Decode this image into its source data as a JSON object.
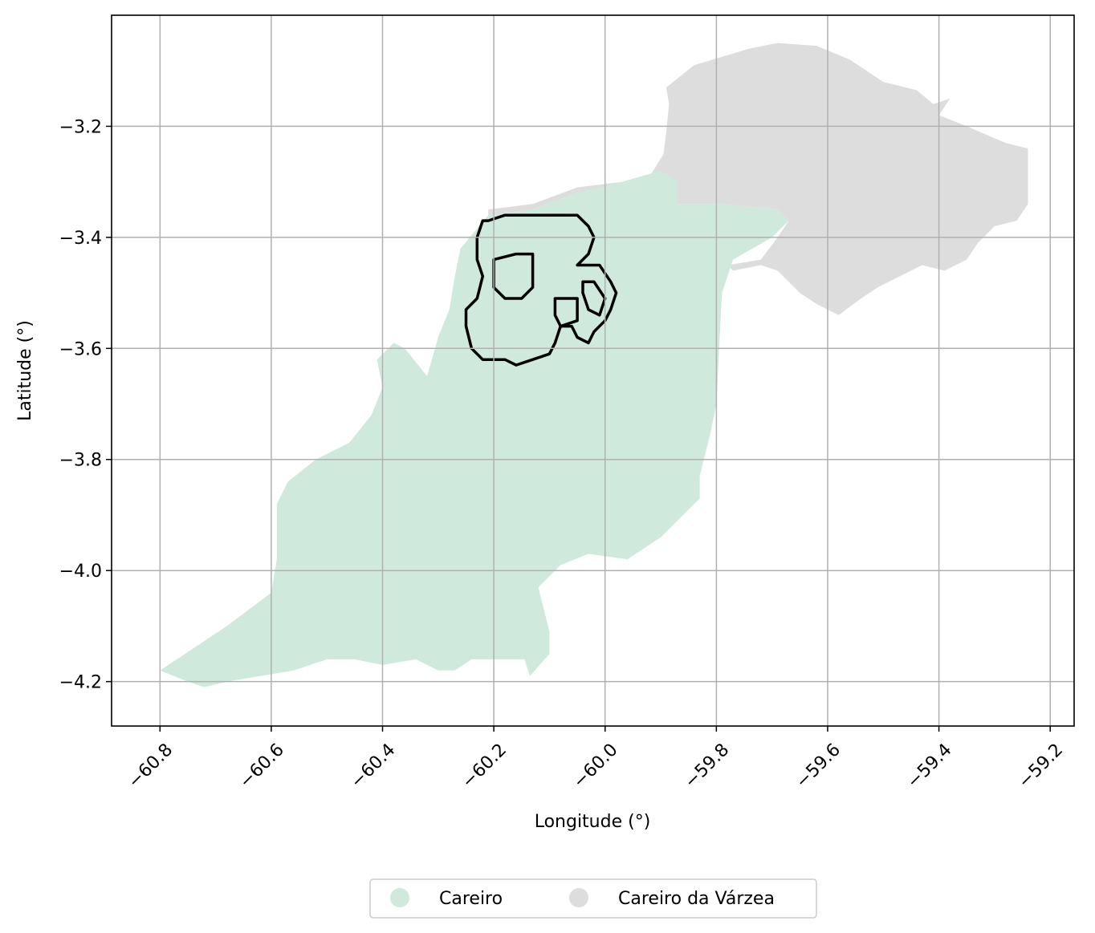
{
  "chart_data": {
    "type": "map",
    "xlabel": "Longitude (°)",
    "ylabel": "Latitude (°)",
    "x_ticks": [
      "−60.8",
      "−60.6",
      "−60.4",
      "−60.2",
      "−60.0",
      "−59.8",
      "−59.6",
      "−59.4",
      "−59.2"
    ],
    "x_tick_values": [
      -60.8,
      -60.6,
      -60.4,
      -60.2,
      -60.0,
      -59.8,
      -59.6,
      -59.4,
      -59.2
    ],
    "y_ticks": [
      "−3.2",
      "−3.4",
      "−3.6",
      "−3.8",
      "−4.0",
      "−4.2"
    ],
    "y_tick_values": [
      -3.2,
      -3.4,
      -3.6,
      -3.8,
      -4.0,
      -4.2
    ],
    "xlim": [
      -60.887,
      -59.157
    ],
    "ylim": [
      -4.28,
      -3.0
    ],
    "grid": true,
    "legend_position": "bottom-center",
    "legend": [
      {
        "label": "Careiro",
        "color": "#cfeadd"
      },
      {
        "label": "Careiro da Várzea",
        "color": "#dddddd"
      }
    ],
    "regions": [
      {
        "name": "Careiro da Várzea",
        "color": "#dddddd",
        "coords": [
          [
            -60.21,
            -3.35
          ],
          [
            -60.13,
            -3.34
          ],
          [
            -60.05,
            -3.31
          ],
          [
            -59.97,
            -3.3
          ],
          [
            -59.92,
            -3.29
          ],
          [
            -59.895,
            -3.25
          ],
          [
            -59.89,
            -3.21
          ],
          [
            -59.885,
            -3.16
          ],
          [
            -59.89,
            -3.13
          ],
          [
            -59.84,
            -3.09
          ],
          [
            -59.74,
            -3.06
          ],
          [
            -59.69,
            -3.05
          ],
          [
            -59.62,
            -3.055
          ],
          [
            -59.56,
            -3.08
          ],
          [
            -59.5,
            -3.12
          ],
          [
            -59.44,
            -3.135
          ],
          [
            -59.41,
            -3.16
          ],
          [
            -59.38,
            -3.15
          ],
          [
            -59.4,
            -3.18
          ],
          [
            -59.35,
            -3.2
          ],
          [
            -59.28,
            -3.23
          ],
          [
            -59.24,
            -3.24
          ],
          [
            -59.24,
            -3.34
          ],
          [
            -59.26,
            -3.37
          ],
          [
            -59.3,
            -3.38
          ],
          [
            -59.33,
            -3.41
          ],
          [
            -59.35,
            -3.44
          ],
          [
            -59.39,
            -3.46
          ],
          [
            -59.43,
            -3.45
          ],
          [
            -59.47,
            -3.47
          ],
          [
            -59.51,
            -3.49
          ],
          [
            -59.54,
            -3.51
          ],
          [
            -59.58,
            -3.54
          ],
          [
            -59.62,
            -3.52
          ],
          [
            -59.65,
            -3.5
          ],
          [
            -59.69,
            -3.46
          ],
          [
            -59.72,
            -3.45
          ],
          [
            -59.77,
            -3.46
          ],
          [
            -59.78,
            -3.45
          ],
          [
            -59.72,
            -3.44
          ],
          [
            -59.69,
            -3.4
          ],
          [
            -59.67,
            -3.37
          ],
          [
            -59.69,
            -3.35
          ],
          [
            -59.79,
            -3.34
          ],
          [
            -59.87,
            -3.34
          ],
          [
            -59.885,
            -3.3
          ],
          [
            -59.9,
            -3.28
          ],
          [
            -59.97,
            -3.31
          ],
          [
            -60.05,
            -3.32
          ],
          [
            -60.13,
            -3.35
          ],
          [
            -60.21,
            -3.36
          ]
        ]
      },
      {
        "name": "Careiro",
        "color": "#cfeadd",
        "coords": [
          [
            -60.8,
            -4.18
          ],
          [
            -60.75,
            -4.2
          ],
          [
            -60.72,
            -4.21
          ],
          [
            -60.68,
            -4.2
          ],
          [
            -60.62,
            -4.19
          ],
          [
            -60.56,
            -4.18
          ],
          [
            -60.5,
            -4.16
          ],
          [
            -60.45,
            -4.16
          ],
          [
            -60.4,
            -4.17
          ],
          [
            -60.34,
            -4.16
          ],
          [
            -60.3,
            -4.18
          ],
          [
            -60.27,
            -4.18
          ],
          [
            -60.24,
            -4.16
          ],
          [
            -60.18,
            -4.16
          ],
          [
            -60.145,
            -4.16
          ],
          [
            -60.135,
            -4.19
          ],
          [
            -60.1,
            -4.15
          ],
          [
            -60.1,
            -4.11
          ],
          [
            -60.12,
            -4.03
          ],
          [
            -60.08,
            -3.99
          ],
          [
            -60.03,
            -3.97
          ],
          [
            -59.96,
            -3.98
          ],
          [
            -59.9,
            -3.94
          ],
          [
            -59.83,
            -3.87
          ],
          [
            -59.83,
            -3.83
          ],
          [
            -59.82,
            -3.79
          ],
          [
            -59.81,
            -3.75
          ],
          [
            -59.8,
            -3.7
          ],
          [
            -59.795,
            -3.6
          ],
          [
            -59.79,
            -3.5
          ],
          [
            -59.77,
            -3.44
          ],
          [
            -59.7,
            -3.4
          ],
          [
            -59.67,
            -3.37
          ],
          [
            -59.69,
            -3.35
          ],
          [
            -59.79,
            -3.34
          ],
          [
            -59.87,
            -3.34
          ],
          [
            -59.87,
            -3.3
          ],
          [
            -59.9,
            -3.28
          ],
          [
            -59.97,
            -3.3
          ],
          [
            -60.05,
            -3.32
          ],
          [
            -60.13,
            -3.35
          ],
          [
            -60.21,
            -3.36
          ],
          [
            -60.26,
            -3.42
          ],
          [
            -60.27,
            -3.47
          ],
          [
            -60.28,
            -3.53
          ],
          [
            -60.3,
            -3.58
          ],
          [
            -60.32,
            -3.65
          ],
          [
            -60.36,
            -3.6
          ],
          [
            -60.38,
            -3.59
          ],
          [
            -60.41,
            -3.62
          ],
          [
            -60.4,
            -3.67
          ],
          [
            -60.42,
            -3.72
          ],
          [
            -60.46,
            -3.77
          ],
          [
            -60.52,
            -3.8
          ],
          [
            -60.57,
            -3.84
          ],
          [
            -60.59,
            -3.88
          ],
          [
            -60.59,
            -3.98
          ],
          [
            -60.6,
            -4.04
          ],
          [
            -60.68,
            -4.1
          ],
          [
            -60.74,
            -4.14
          ],
          [
            -60.8,
            -4.18
          ]
        ]
      }
    ],
    "outline": {
      "color": "#000000",
      "rings": [
        [
          [
            -60.21,
            -3.37
          ],
          [
            -60.18,
            -3.36
          ],
          [
            -60.1,
            -3.36
          ],
          [
            -60.05,
            -3.36
          ],
          [
            -60.03,
            -3.38
          ],
          [
            -60.02,
            -3.4
          ],
          [
            -60.03,
            -3.43
          ],
          [
            -60.05,
            -3.45
          ],
          [
            -60.01,
            -3.45
          ],
          [
            -59.99,
            -3.48
          ],
          [
            -59.98,
            -3.5
          ],
          [
            -59.99,
            -3.53
          ],
          [
            -60.0,
            -3.55
          ],
          [
            -60.02,
            -3.57
          ],
          [
            -60.03,
            -3.59
          ],
          [
            -60.05,
            -3.58
          ],
          [
            -60.06,
            -3.56
          ],
          [
            -60.08,
            -3.56
          ],
          [
            -60.09,
            -3.59
          ],
          [
            -60.1,
            -3.61
          ],
          [
            -60.13,
            -3.62
          ],
          [
            -60.16,
            -3.63
          ],
          [
            -60.18,
            -3.62
          ],
          [
            -60.22,
            -3.62
          ],
          [
            -60.24,
            -3.6
          ],
          [
            -60.25,
            -3.56
          ],
          [
            -60.25,
            -3.53
          ],
          [
            -60.23,
            -3.51
          ],
          [
            -60.22,
            -3.47
          ],
          [
            -60.23,
            -3.44
          ],
          [
            -60.23,
            -3.4
          ],
          [
            -60.22,
            -3.37
          ]
        ],
        [
          [
            -60.2,
            -3.44
          ],
          [
            -60.16,
            -3.43
          ],
          [
            -60.13,
            -3.43
          ],
          [
            -60.13,
            -3.49
          ],
          [
            -60.15,
            -3.51
          ],
          [
            -60.18,
            -3.51
          ],
          [
            -60.2,
            -3.49
          ],
          [
            -60.2,
            -3.44
          ]
        ],
        [
          [
            -60.09,
            -3.51
          ],
          [
            -60.05,
            -3.51
          ],
          [
            -60.05,
            -3.55
          ],
          [
            -60.08,
            -3.56
          ],
          [
            -60.09,
            -3.54
          ],
          [
            -60.09,
            -3.51
          ]
        ],
        [
          [
            -60.04,
            -3.48
          ],
          [
            -60.02,
            -3.48
          ],
          [
            -60.0,
            -3.51
          ],
          [
            -60.01,
            -3.54
          ],
          [
            -60.03,
            -3.53
          ],
          [
            -60.04,
            -3.5
          ],
          [
            -60.04,
            -3.48
          ]
        ]
      ]
    }
  }
}
